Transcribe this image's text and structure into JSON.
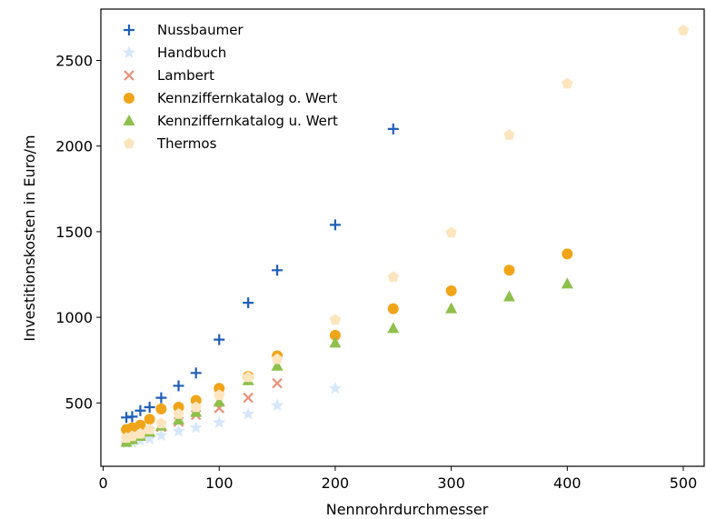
{
  "chart_data": {
    "type": "scatter",
    "xlabel": "Nennrohrdurchmesser",
    "ylabel": "Investitionskosten in Euro/m",
    "xlim": [
      -2,
      518
    ],
    "ylim": [
      130,
      2800
    ],
    "xticks": [
      0,
      100,
      200,
      300,
      400,
      500
    ],
    "yticks": [
      500,
      1000,
      1500,
      2000,
      2500
    ],
    "grid": false,
    "legend_position": "top-left",
    "series": [
      {
        "name": "Nussbaumer",
        "marker": "plus",
        "color": "#1f5fb8",
        "x": [
          20,
          25,
          32,
          40,
          50,
          65,
          80,
          100,
          125,
          150,
          200,
          250
        ],
        "y": [
          415,
          420,
          455,
          475,
          530,
          600,
          675,
          870,
          1085,
          1275,
          1540,
          2100
        ]
      },
      {
        "name": "Handbuch",
        "marker": "star",
        "color": "#d6e6fb",
        "x": [
          20,
          25,
          32,
          40,
          50,
          65,
          80,
          100,
          125,
          150,
          200
        ],
        "y": [
          265,
          270,
          280,
          290,
          310,
          335,
          355,
          385,
          435,
          485,
          585
        ]
      },
      {
        "name": "Lambert",
        "marker": "x",
        "color": "#e8907a",
        "x": [
          20,
          25,
          32,
          40,
          50,
          65,
          80,
          100,
          125,
          150
        ],
        "y": [
          285,
          295,
          310,
          330,
          360,
          390,
          430,
          470,
          530,
          615
        ]
      },
      {
        "name": "Kennziffernkatalog o. Wert",
        "marker": "circle",
        "color": "#f0a419",
        "x": [
          20,
          25,
          32,
          40,
          50,
          65,
          80,
          100,
          125,
          150,
          200,
          250,
          300,
          350,
          400
        ],
        "y": [
          345,
          355,
          370,
          405,
          465,
          475,
          515,
          585,
          655,
          775,
          895,
          1050,
          1155,
          1275,
          1370
        ]
      },
      {
        "name": "Kennziffernkatalog u. Wert",
        "marker": "triangle",
        "color": "#8ec04b",
        "x": [
          20,
          25,
          32,
          40,
          50,
          65,
          80,
          100,
          125,
          150,
          200,
          250,
          300,
          350,
          400
        ],
        "y": [
          270,
          285,
          305,
          330,
          365,
          400,
          445,
          505,
          630,
          715,
          850,
          935,
          1050,
          1120,
          1195
        ]
      },
      {
        "name": "Thermos",
        "marker": "pentagon",
        "color": "#fde6bf",
        "x": [
          20,
          25,
          32,
          40,
          50,
          65,
          80,
          100,
          125,
          150,
          200,
          250,
          300,
          350,
          400,
          500
        ],
        "y": [
          295,
          305,
          320,
          345,
          380,
          435,
          475,
          545,
          650,
          755,
          985,
          1235,
          1495,
          2065,
          2365,
          2675
        ]
      }
    ]
  }
}
